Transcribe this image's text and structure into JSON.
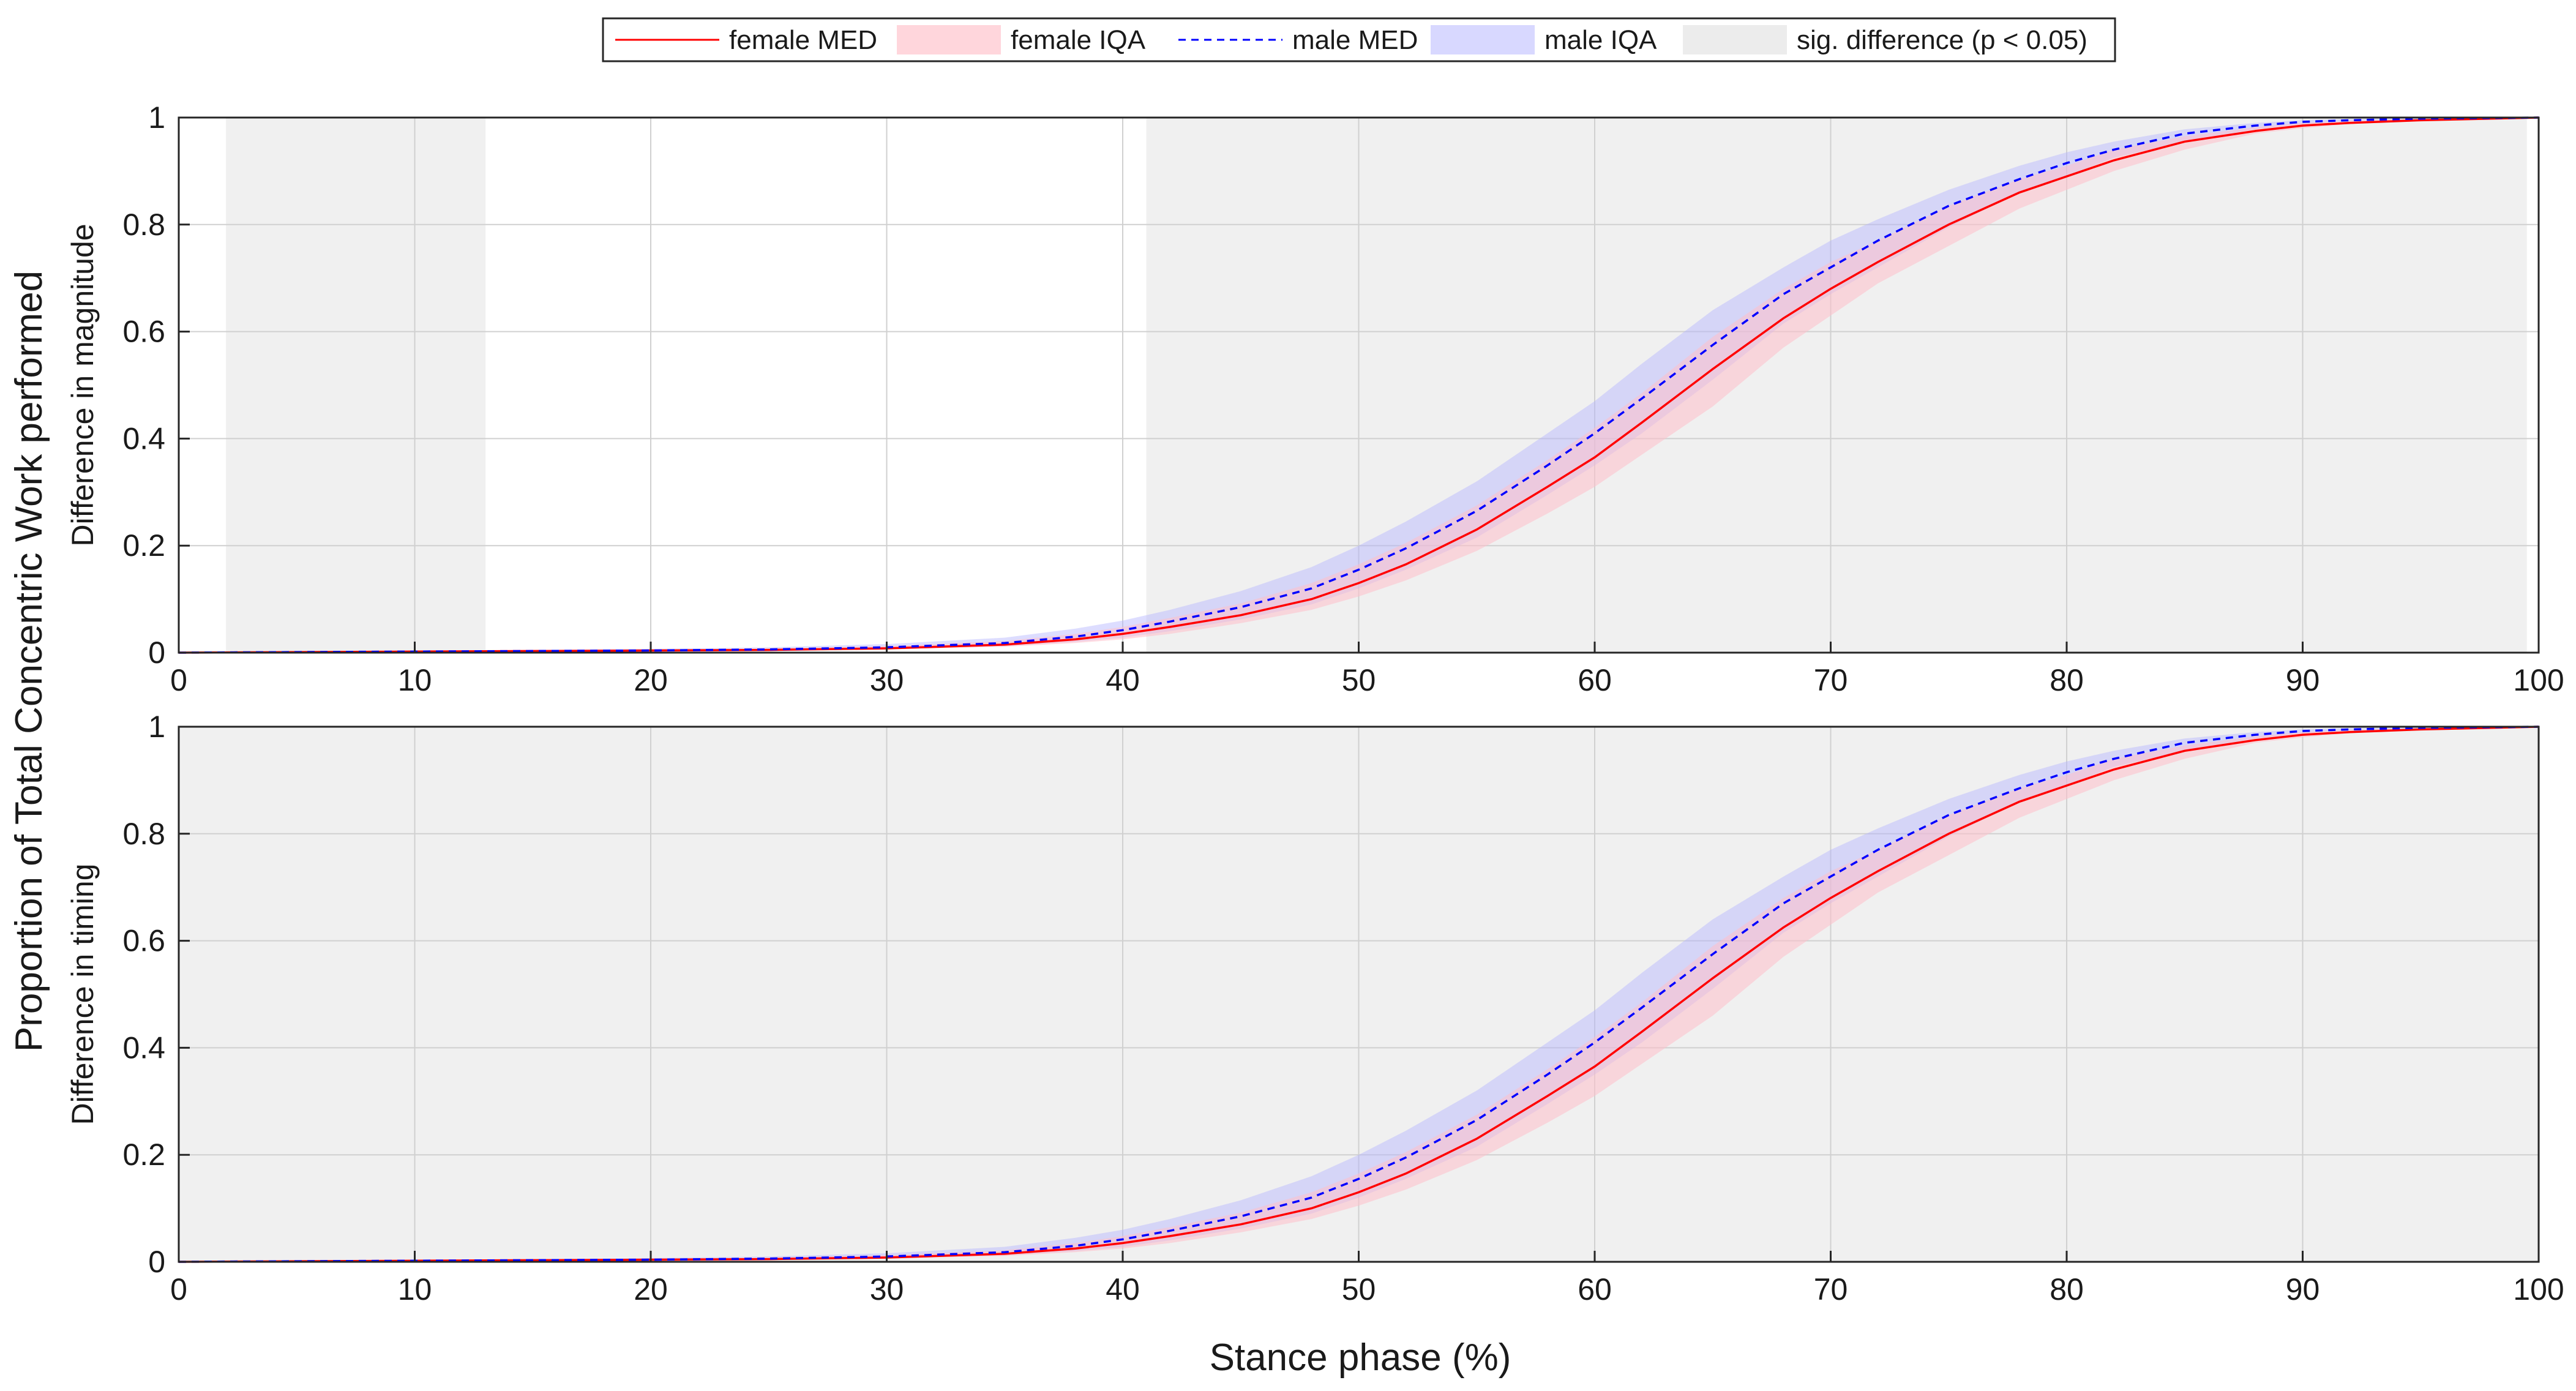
{
  "legend": {
    "items": [
      {
        "label": "female MED",
        "kind": "line",
        "color": "#ff0000",
        "dash": "solid"
      },
      {
        "label": "female IQA",
        "kind": "patch",
        "color": "#ffd6dc"
      },
      {
        "label": "male MED",
        "kind": "line",
        "color": "#0000ff",
        "dash": "dashed"
      },
      {
        "label": "male IQA",
        "kind": "patch",
        "color": "#d8d8ff"
      },
      {
        "label": "sig. difference (p < 0.05)",
        "kind": "patch",
        "color": "#ececec"
      }
    ]
  },
  "figure": {
    "shared_ylabel": "Proportion of Total Concentric Work performed",
    "xlabel": "Stance phase (%)"
  },
  "colors": {
    "female_line": "#ff0000",
    "female_band": "#ffc0cb",
    "male_line": "#0000ff",
    "male_band": "#b4b4ff",
    "sig_shade": "#f0f0f0",
    "grid": "#d0d0d0",
    "axes": "#262626"
  },
  "chart_data": [
    {
      "type": "line",
      "title": "",
      "xlabel": "",
      "ylabel": "Difference in magnitude",
      "xlim": [
        0,
        100
      ],
      "ylim": [
        0,
        1
      ],
      "xticks": [
        "0",
        "10",
        "20",
        "30",
        "40",
        "50",
        "60",
        "70",
        "80",
        "90",
        "100"
      ],
      "yticks": [
        "0",
        "0.2",
        "0.4",
        "0.6",
        "0.8",
        "1"
      ],
      "grid": true,
      "legend_position": "top-center",
      "x": [
        0,
        5,
        10,
        15,
        20,
        25,
        30,
        35,
        38,
        40,
        42,
        45,
        48,
        50,
        52,
        55,
        58,
        60,
        62,
        65,
        68,
        70,
        72,
        75,
        78,
        80,
        82,
        85,
        88,
        90,
        92,
        95,
        100
      ],
      "series": [
        {
          "name": "female MED",
          "values": [
            0,
            0.001,
            0.002,
            0.003,
            0.004,
            0.005,
            0.008,
            0.015,
            0.025,
            0.035,
            0.048,
            0.07,
            0.1,
            0.13,
            0.165,
            0.23,
            0.31,
            0.365,
            0.43,
            0.53,
            0.625,
            0.68,
            0.73,
            0.8,
            0.86,
            0.89,
            0.92,
            0.955,
            0.975,
            0.985,
            0.99,
            0.995,
            1
          ]
        },
        {
          "name": "female IQA lower",
          "values": [
            0,
            0.001,
            0.001,
            0.002,
            0.003,
            0.004,
            0.006,
            0.011,
            0.018,
            0.025,
            0.035,
            0.055,
            0.08,
            0.105,
            0.135,
            0.19,
            0.26,
            0.31,
            0.37,
            0.46,
            0.57,
            0.63,
            0.69,
            0.76,
            0.83,
            0.865,
            0.9,
            0.94,
            0.97,
            0.98,
            0.988,
            0.994,
            1
          ]
        },
        {
          "name": "female IQA upper",
          "values": [
            0,
            0.002,
            0.003,
            0.004,
            0.006,
            0.008,
            0.012,
            0.022,
            0.035,
            0.048,
            0.065,
            0.092,
            0.13,
            0.165,
            0.205,
            0.275,
            0.36,
            0.42,
            0.485,
            0.59,
            0.68,
            0.73,
            0.77,
            0.835,
            0.885,
            0.91,
            0.94,
            0.965,
            0.982,
            0.99,
            0.994,
            0.997,
            1
          ]
        },
        {
          "name": "male MED",
          "values": [
            0,
            0.001,
            0.002,
            0.003,
            0.004,
            0.006,
            0.01,
            0.018,
            0.03,
            0.042,
            0.058,
            0.085,
            0.12,
            0.155,
            0.195,
            0.265,
            0.35,
            0.41,
            0.475,
            0.575,
            0.67,
            0.72,
            0.77,
            0.835,
            0.885,
            0.915,
            0.94,
            0.97,
            0.985,
            0.992,
            0.995,
            0.998,
            1
          ]
        },
        {
          "name": "male IQA lower",
          "values": [
            0,
            0.001,
            0.001,
            0.002,
            0.003,
            0.004,
            0.007,
            0.012,
            0.02,
            0.028,
            0.04,
            0.062,
            0.09,
            0.12,
            0.155,
            0.215,
            0.295,
            0.35,
            0.41,
            0.51,
            0.615,
            0.67,
            0.72,
            0.795,
            0.86,
            0.89,
            0.925,
            0.955,
            0.978,
            0.988,
            0.993,
            0.997,
            1
          ]
        },
        {
          "name": "male IQA upper",
          "values": [
            0,
            0.002,
            0.003,
            0.005,
            0.007,
            0.01,
            0.016,
            0.028,
            0.045,
            0.06,
            0.08,
            0.115,
            0.16,
            0.2,
            0.245,
            0.32,
            0.41,
            0.47,
            0.54,
            0.64,
            0.72,
            0.77,
            0.81,
            0.865,
            0.91,
            0.935,
            0.955,
            0.978,
            0.99,
            0.995,
            0.997,
            0.999,
            1
          ]
        }
      ],
      "sig_regions": [
        [
          2,
          13
        ],
        [
          41,
          99.5
        ]
      ]
    },
    {
      "type": "line",
      "title": "",
      "xlabel": "Stance phase (%)",
      "ylabel": "Difference in timing",
      "xlim": [
        0,
        100
      ],
      "ylim": [
        0,
        1
      ],
      "xticks": [
        "0",
        "10",
        "20",
        "30",
        "40",
        "50",
        "60",
        "70",
        "80",
        "90",
        "100"
      ],
      "yticks": [
        "0",
        "0.2",
        "0.4",
        "0.6",
        "0.8",
        "1"
      ],
      "grid": true,
      "x": [
        0,
        5,
        10,
        15,
        20,
        25,
        30,
        35,
        38,
        40,
        42,
        45,
        48,
        50,
        52,
        55,
        58,
        60,
        62,
        65,
        68,
        70,
        72,
        75,
        78,
        80,
        82,
        85,
        88,
        90,
        92,
        95,
        100
      ],
      "series": [
        {
          "name": "female MED",
          "values": [
            0,
            0.001,
            0.002,
            0.003,
            0.004,
            0.005,
            0.008,
            0.015,
            0.025,
            0.035,
            0.048,
            0.07,
            0.1,
            0.13,
            0.165,
            0.23,
            0.31,
            0.365,
            0.43,
            0.53,
            0.625,
            0.68,
            0.73,
            0.8,
            0.86,
            0.89,
            0.92,
            0.955,
            0.975,
            0.985,
            0.99,
            0.995,
            1
          ]
        },
        {
          "name": "female IQA lower",
          "values": [
            0,
            0.001,
            0.001,
            0.002,
            0.003,
            0.004,
            0.006,
            0.011,
            0.018,
            0.025,
            0.035,
            0.055,
            0.08,
            0.105,
            0.135,
            0.19,
            0.26,
            0.31,
            0.37,
            0.46,
            0.57,
            0.63,
            0.69,
            0.76,
            0.83,
            0.865,
            0.9,
            0.94,
            0.97,
            0.98,
            0.988,
            0.994,
            1
          ]
        },
        {
          "name": "female IQA upper",
          "values": [
            0,
            0.002,
            0.003,
            0.004,
            0.006,
            0.008,
            0.012,
            0.022,
            0.035,
            0.048,
            0.065,
            0.092,
            0.13,
            0.165,
            0.205,
            0.275,
            0.36,
            0.42,
            0.485,
            0.59,
            0.68,
            0.73,
            0.77,
            0.835,
            0.885,
            0.91,
            0.94,
            0.965,
            0.982,
            0.99,
            0.994,
            0.997,
            1
          ]
        },
        {
          "name": "male MED",
          "values": [
            0,
            0.001,
            0.002,
            0.003,
            0.004,
            0.006,
            0.01,
            0.018,
            0.03,
            0.042,
            0.058,
            0.085,
            0.12,
            0.155,
            0.195,
            0.265,
            0.35,
            0.41,
            0.475,
            0.575,
            0.67,
            0.72,
            0.77,
            0.835,
            0.885,
            0.915,
            0.94,
            0.97,
            0.985,
            0.992,
            0.995,
            0.998,
            1
          ]
        },
        {
          "name": "male IQA lower",
          "values": [
            0,
            0.001,
            0.001,
            0.002,
            0.003,
            0.004,
            0.007,
            0.012,
            0.02,
            0.028,
            0.04,
            0.062,
            0.09,
            0.12,
            0.155,
            0.215,
            0.295,
            0.35,
            0.41,
            0.51,
            0.615,
            0.67,
            0.72,
            0.795,
            0.86,
            0.89,
            0.925,
            0.955,
            0.978,
            0.988,
            0.993,
            0.997,
            1
          ]
        },
        {
          "name": "male IQA upper",
          "values": [
            0,
            0.002,
            0.003,
            0.005,
            0.007,
            0.01,
            0.016,
            0.028,
            0.045,
            0.06,
            0.08,
            0.115,
            0.16,
            0.2,
            0.245,
            0.32,
            0.41,
            0.47,
            0.54,
            0.64,
            0.72,
            0.77,
            0.81,
            0.865,
            0.91,
            0.935,
            0.955,
            0.978,
            0.99,
            0.995,
            0.997,
            0.999,
            1
          ]
        }
      ],
      "sig_regions": [
        [
          0,
          100
        ]
      ]
    }
  ]
}
